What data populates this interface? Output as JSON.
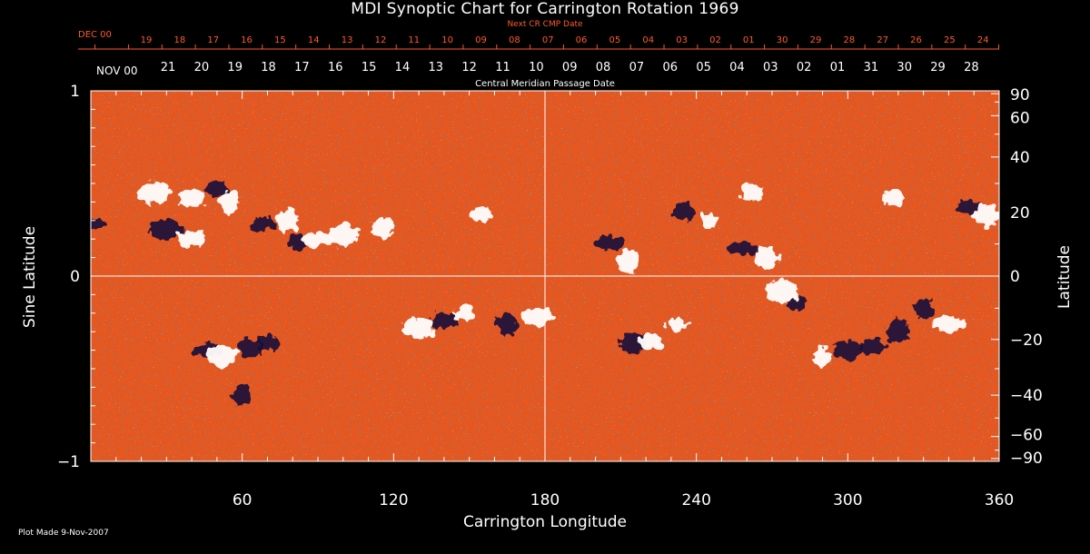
{
  "chart_data": {
    "type": "heatmap",
    "title": "MDI Synoptic Chart for Carrington Rotation 1969",
    "xlabel": "Carrington Longitude",
    "ylabel_left": "Sine Latitude",
    "ylabel_right": "Latitude",
    "xlim": [
      0,
      360
    ],
    "ylim": [
      -1,
      1
    ],
    "x_ticks": [
      60,
      120,
      180,
      240,
      300,
      360
    ],
    "y_left_ticks": [
      {
        "value": 1,
        "label": "1"
      },
      {
        "value": 0,
        "label": "0"
      },
      {
        "value": -1,
        "label": "−1"
      }
    ],
    "y_right_ticks": [
      90,
      60,
      40,
      20,
      0,
      -20,
      -40,
      -60,
      -90
    ],
    "top_axis_label": "Next CR CMP Date",
    "top_axis_month": "DEC 00",
    "top_axis_days": [
      "19",
      "18",
      "17",
      "16",
      "15",
      "14",
      "13",
      "12",
      "11",
      "10",
      "09",
      "08",
      "07",
      "06",
      "05",
      "04",
      "03",
      "02",
      "01",
      "30",
      "29",
      "28",
      "27",
      "26",
      "25",
      "24"
    ],
    "cmp_axis_label": "Central Meridian Passage Date",
    "cmp_axis_month": "NOV 00",
    "cmp_axis_days": [
      "21",
      "20",
      "19",
      "18",
      "17",
      "16",
      "15",
      "14",
      "13",
      "12",
      "11",
      "10",
      "09",
      "08",
      "07",
      "06",
      "05",
      "04",
      "03",
      "02",
      "01",
      "31",
      "30",
      "29",
      "28"
    ],
    "colors": {
      "background": "#000000",
      "field": "#e8561c",
      "positive_polarity": "#ffffff",
      "negative_polarity": "#1a0a3a",
      "top_axis_text": "#ff5a2a"
    },
    "active_regions": [
      {
        "lon": 2,
        "sinlat": 0.28,
        "polarity": "negative"
      },
      {
        "lon": 25,
        "sinlat": 0.45,
        "polarity": "positive"
      },
      {
        "lon": 40,
        "sinlat": 0.42,
        "polarity": "positive"
      },
      {
        "lon": 50,
        "sinlat": 0.47,
        "polarity": "negative"
      },
      {
        "lon": 55,
        "sinlat": 0.4,
        "polarity": "positive"
      },
      {
        "lon": 30,
        "sinlat": 0.25,
        "polarity": "negative"
      },
      {
        "lon": 40,
        "sinlat": 0.2,
        "polarity": "positive"
      },
      {
        "lon": 68,
        "sinlat": 0.28,
        "polarity": "negative"
      },
      {
        "lon": 78,
        "sinlat": 0.3,
        "polarity": "positive"
      },
      {
        "lon": 82,
        "sinlat": 0.18,
        "polarity": "negative"
      },
      {
        "lon": 90,
        "sinlat": 0.2,
        "polarity": "positive"
      },
      {
        "lon": 100,
        "sinlat": 0.22,
        "polarity": "positive"
      },
      {
        "lon": 116,
        "sinlat": 0.26,
        "polarity": "positive"
      },
      {
        "lon": 155,
        "sinlat": 0.33,
        "polarity": "positive"
      },
      {
        "lon": 46,
        "sinlat": -0.4,
        "polarity": "negative"
      },
      {
        "lon": 52,
        "sinlat": -0.43,
        "polarity": "positive"
      },
      {
        "lon": 63,
        "sinlat": -0.39,
        "polarity": "negative"
      },
      {
        "lon": 70,
        "sinlat": -0.36,
        "polarity": "negative"
      },
      {
        "lon": 60,
        "sinlat": -0.64,
        "polarity": "negative"
      },
      {
        "lon": 130,
        "sinlat": -0.28,
        "polarity": "positive"
      },
      {
        "lon": 140,
        "sinlat": -0.24,
        "polarity": "negative"
      },
      {
        "lon": 148,
        "sinlat": -0.2,
        "polarity": "positive"
      },
      {
        "lon": 165,
        "sinlat": -0.26,
        "polarity": "negative"
      },
      {
        "lon": 177,
        "sinlat": -0.22,
        "polarity": "positive"
      },
      {
        "lon": 206,
        "sinlat": 0.18,
        "polarity": "negative"
      },
      {
        "lon": 213,
        "sinlat": 0.08,
        "polarity": "positive"
      },
      {
        "lon": 235,
        "sinlat": 0.35,
        "polarity": "negative"
      },
      {
        "lon": 245,
        "sinlat": 0.3,
        "polarity": "positive"
      },
      {
        "lon": 258,
        "sinlat": 0.15,
        "polarity": "negative"
      },
      {
        "lon": 268,
        "sinlat": 0.1,
        "polarity": "positive"
      },
      {
        "lon": 262,
        "sinlat": 0.45,
        "polarity": "positive"
      },
      {
        "lon": 280,
        "sinlat": -0.15,
        "polarity": "negative"
      },
      {
        "lon": 274,
        "sinlat": -0.08,
        "polarity": "positive"
      },
      {
        "lon": 215,
        "sinlat": -0.36,
        "polarity": "negative"
      },
      {
        "lon": 222,
        "sinlat": -0.36,
        "polarity": "positive"
      },
      {
        "lon": 232,
        "sinlat": -0.26,
        "polarity": "positive"
      },
      {
        "lon": 290,
        "sinlat": -0.44,
        "polarity": "positive"
      },
      {
        "lon": 300,
        "sinlat": -0.4,
        "polarity": "negative"
      },
      {
        "lon": 310,
        "sinlat": -0.38,
        "polarity": "negative"
      },
      {
        "lon": 320,
        "sinlat": -0.3,
        "polarity": "negative"
      },
      {
        "lon": 330,
        "sinlat": -0.18,
        "polarity": "negative"
      },
      {
        "lon": 340,
        "sinlat": -0.26,
        "polarity": "positive"
      },
      {
        "lon": 348,
        "sinlat": 0.37,
        "polarity": "negative"
      },
      {
        "lon": 355,
        "sinlat": 0.33,
        "polarity": "positive"
      },
      {
        "lon": 318,
        "sinlat": 0.42,
        "polarity": "positive"
      }
    ]
  },
  "footer": "Plot Made  9-Nov-2007"
}
